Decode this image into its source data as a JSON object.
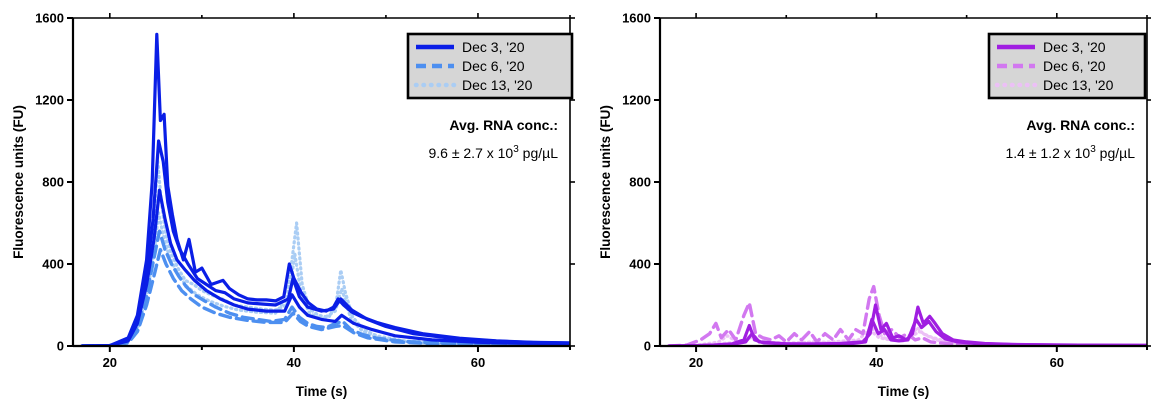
{
  "chart_data": [
    {
      "type": "line",
      "ylabel": "Fluorescence units (FU)",
      "xlabel": "Time (s)",
      "xlim": [
        16,
        70
      ],
      "ylim": [
        0,
        1600
      ],
      "x_ticks": [
        20,
        40,
        60
      ],
      "y_ticks": [
        0,
        400,
        800,
        1200,
        1600
      ],
      "grid": false,
      "legend": "top-right",
      "annotation": {
        "title": "Avg. RNA conc.:",
        "value_text": "9.6 ± 2.7 x 10",
        "exponent": "3",
        "unit_text": " pg/µL"
      },
      "series": [
        {
          "name": "Dec 3, '20",
          "color": "#0a1ee6",
          "style": "solid",
          "x": [
            17,
            20,
            22,
            23,
            24,
            24.6,
            25.1,
            25.5,
            25.9,
            26.3,
            26.8,
            27.3,
            28,
            28.6,
            29.3,
            30,
            31,
            32.3,
            33,
            34,
            35,
            36,
            37,
            38,
            38.9,
            39.5,
            40,
            40.8,
            41.6,
            42.5,
            43.5,
            44.3,
            44.8,
            45.4,
            46.3,
            47.5,
            49,
            51,
            54,
            58,
            62,
            66,
            70
          ],
          "y": [
            0,
            2,
            40,
            150,
            420,
            800,
            1520,
            1100,
            1130,
            780,
            640,
            520,
            420,
            520,
            360,
            380,
            300,
            320,
            280,
            250,
            230,
            225,
            225,
            220,
            240,
            400,
            330,
            260,
            210,
            180,
            170,
            190,
            230,
            200,
            165,
            140,
            115,
            90,
            60,
            38,
            25,
            18,
            15
          ]
        },
        {
          "name": "Dec 3, '20",
          "color": "#0a1ee6",
          "style": "solid",
          "x": [
            17,
            20,
            22,
            23,
            24,
            24.7,
            25.3,
            25.8,
            26.3,
            26.9,
            27.6,
            28.5,
            29.5,
            30.5,
            31.5,
            32.5,
            33.5,
            35,
            36.5,
            38,
            39.4,
            39.9,
            40.6,
            41.5,
            43,
            44.3,
            45.1,
            46.3,
            48,
            50,
            53,
            57,
            62,
            66,
            70
          ],
          "y": [
            0,
            2,
            30,
            120,
            350,
            620,
            1000,
            900,
            700,
            560,
            470,
            400,
            330,
            300,
            270,
            260,
            230,
            210,
            205,
            200,
            230,
            330,
            240,
            190,
            170,
            180,
            230,
            175,
            130,
            95,
            60,
            38,
            24,
            17,
            14
          ]
        },
        {
          "name": "Dec 3, '20",
          "color": "#0a1ee6",
          "style": "solid",
          "x": [
            17,
            20,
            22,
            23,
            24,
            24.8,
            25.4,
            26,
            26.6,
            27.3,
            28.2,
            29.2,
            30.5,
            32,
            33.5,
            35,
            37,
            39,
            39.8,
            40.6,
            41.5,
            43,
            44.5,
            45.2,
            46.5,
            48.5,
            51,
            55,
            60,
            65,
            70
          ],
          "y": [
            0,
            2,
            25,
            110,
            300,
            520,
            760,
            620,
            500,
            420,
            370,
            320,
            270,
            230,
            200,
            180,
            170,
            170,
            250,
            190,
            150,
            130,
            120,
            150,
            110,
            80,
            50,
            30,
            18,
            13,
            11
          ]
        },
        {
          "name": "Dec 6, '20",
          "color": "#4d8ff0",
          "style": "dashed",
          "x": [
            17,
            20,
            22,
            23,
            24,
            24.8,
            25.4,
            26,
            26.7,
            27.5,
            28.3,
            29.2,
            30.3,
            31.5,
            33,
            34.5,
            36,
            37.5,
            39,
            39.8,
            40.6,
            41.5,
            42.5,
            43.5,
            44.5,
            45.3,
            46.2,
            47.5,
            49,
            52,
            56,
            60,
            65,
            70
          ],
          "y": [
            0,
            2,
            20,
            90,
            250,
            430,
            560,
            470,
            400,
            340,
            290,
            250,
            220,
            190,
            160,
            140,
            130,
            120,
            130,
            190,
            140,
            110,
            95,
            90,
            110,
            120,
            80,
            55,
            38,
            22,
            14,
            10,
            8,
            7
          ]
        },
        {
          "name": "Dec 6, '20",
          "color": "#4d8ff0",
          "style": "dashed",
          "x": [
            17,
            20,
            22,
            23,
            24,
            24.9,
            25.5,
            26.1,
            26.9,
            27.8,
            28.8,
            30,
            31.5,
            33,
            35,
            37,
            39,
            39.9,
            40.7,
            41.6,
            43,
            44.5,
            45.3,
            46.5,
            48,
            51,
            55,
            60,
            65,
            70
          ],
          "y": [
            0,
            2,
            15,
            70,
            200,
            360,
            470,
            400,
            330,
            270,
            230,
            190,
            160,
            140,
            125,
            115,
            115,
            160,
            120,
            95,
            80,
            95,
            100,
            65,
            40,
            20,
            12,
            9,
            7,
            6
          ]
        },
        {
          "name": "Dec 13, '20",
          "color": "#aacdf4",
          "style": "dotted",
          "x": [
            17,
            20,
            22,
            23,
            24,
            24.7,
            25.2,
            25.6,
            26.1,
            26.7,
            27.4,
            28.2,
            29.1,
            30,
            31,
            32.2,
            33.5,
            35,
            36.5,
            38,
            39.2,
            39.8,
            40.3,
            40.9,
            41.7,
            42.7,
            43.8,
            44.6,
            45.1,
            45.6,
            46.4,
            47.6,
            49,
            52,
            56,
            60,
            65,
            70
          ],
          "y": [
            0,
            2,
            25,
            100,
            300,
            560,
            900,
            700,
            540,
            450,
            380,
            320,
            300,
            270,
            250,
            230,
            200,
            190,
            180,
            175,
            200,
            420,
            600,
            300,
            180,
            150,
            140,
            210,
            370,
            260,
            140,
            80,
            50,
            25,
            14,
            9,
            7,
            6
          ]
        },
        {
          "name": "Dec 13, '20",
          "color": "#aacdf4",
          "style": "dotted",
          "x": [
            17,
            20,
            22,
            23,
            24,
            24.8,
            25.3,
            25.9,
            26.6,
            27.4,
            28.4,
            29.5,
            30.8,
            32.3,
            34,
            36,
            38,
            39.5,
            40.1,
            40.8,
            41.7,
            43,
            44.5,
            45.2,
            46.2,
            47.5,
            49.5,
            53,
            58,
            64,
            70
          ],
          "y": [
            0,
            2,
            20,
            80,
            250,
            450,
            650,
            520,
            420,
            350,
            290,
            250,
            220,
            195,
            175,
            165,
            160,
            250,
            450,
            250,
            160,
            130,
            170,
            280,
            130,
            70,
            35,
            16,
            9,
            7,
            6
          ]
        }
      ]
    },
    {
      "type": "line",
      "ylabel": "Fluorescence units (FU)",
      "xlabel": "Time (s)",
      "xlim": [
        16,
        70
      ],
      "ylim": [
        0,
        1600
      ],
      "x_ticks": [
        20,
        40,
        60
      ],
      "y_ticks": [
        0,
        400,
        800,
        1200,
        1600
      ],
      "grid": false,
      "legend": "top-right",
      "annotation": {
        "title": "Avg. RNA conc.:",
        "value_text": "1.4 ± 1.2 x 10",
        "exponent": "3",
        "unit_text": " pg/µL"
      },
      "series": [
        {
          "name": "Dec 3, '20",
          "color": "#a01ee1",
          "style": "solid",
          "x": [
            17,
            20,
            22,
            24,
            25.3,
            25.9,
            26.5,
            27.5,
            30,
            33,
            36,
            38.5,
            39.3,
            39.9,
            40.5,
            41.1,
            41.8,
            42.5,
            43.3,
            44,
            44.6,
            45.2,
            45.9,
            46.5,
            47.3,
            48.5,
            50,
            52,
            55,
            60,
            65,
            70
          ],
          "y": [
            0,
            2,
            5,
            10,
            30,
            100,
            30,
            15,
            10,
            10,
            12,
            20,
            60,
            200,
            80,
            110,
            40,
            50,
            30,
            60,
            190,
            110,
            145,
            110,
            60,
            30,
            20,
            12,
            8,
            5,
            4,
            3
          ]
        },
        {
          "name": "Dec 3, '20",
          "color": "#a01ee1",
          "style": "solid",
          "x": [
            17,
            20,
            22,
            24,
            25.5,
            26.2,
            27,
            30,
            34,
            37,
            38.8,
            39.5,
            40.2,
            40.9,
            41.6,
            42.5,
            43.5,
            44.4,
            45,
            45.8,
            46.6,
            47.6,
            49,
            51,
            55,
            60,
            65,
            70
          ],
          "y": [
            0,
            2,
            4,
            8,
            20,
            60,
            20,
            10,
            8,
            10,
            20,
            130,
            60,
            80,
            30,
            25,
            30,
            130,
            90,
            120,
            70,
            35,
            20,
            12,
            7,
            5,
            4,
            3
          ]
        },
        {
          "name": "Dec 6, '20",
          "color": "#d278f0",
          "style": "dashed",
          "x": [
            17,
            19,
            20.5,
            21.5,
            22.2,
            22.8,
            23.6,
            24.4,
            25.3,
            25.9,
            26.6,
            27.4,
            28.3,
            29.2,
            30,
            30.9,
            31.7,
            32.6,
            33.4,
            34.3,
            35.2,
            36,
            36.9,
            37.7,
            38.5,
            39.2,
            39.7,
            40.3,
            40.9,
            41.7,
            42.6,
            43.4,
            44.3,
            45.1,
            46,
            47,
            48.5,
            50,
            52,
            55,
            60,
            65,
            70
          ],
          "y": [
            0,
            5,
            30,
            60,
            110,
            40,
            80,
            30,
            150,
            210,
            60,
            40,
            30,
            50,
            20,
            60,
            30,
            70,
            20,
            60,
            30,
            80,
            30,
            80,
            60,
            230,
            290,
            150,
            60,
            80,
            40,
            60,
            30,
            40,
            20,
            15,
            10,
            8,
            6,
            4,
            3,
            2,
            2
          ]
        },
        {
          "name": "Dec 13, '20",
          "color": "#ecc0f6",
          "style": "dotted",
          "x": [
            17,
            20,
            22,
            24,
            25.5,
            26.2,
            27,
            29,
            32,
            35,
            38,
            39.4,
            40,
            40.8,
            42,
            43.8,
            44.5,
            45.2,
            46,
            47.5,
            49,
            52,
            56,
            60,
            65,
            70
          ],
          "y": [
            0,
            3,
            10,
            15,
            30,
            60,
            25,
            15,
            15,
            20,
            30,
            90,
            70,
            40,
            30,
            40,
            90,
            60,
            45,
            25,
            15,
            8,
            5,
            3,
            2,
            2
          ]
        },
        {
          "name": "Dec 13, '20",
          "color": "#ecc0f6",
          "style": "dotted",
          "x": [
            17,
            20,
            22.5,
            23.5,
            24.5,
            26,
            27,
            30,
            33,
            36,
            38.5,
            39.5,
            40.3,
            41.5,
            43,
            44.8,
            45.6,
            47,
            49,
            53,
            58,
            64,
            70
          ],
          "y": [
            0,
            3,
            20,
            50,
            20,
            40,
            20,
            12,
            20,
            15,
            25,
            70,
            40,
            30,
            25,
            70,
            50,
            25,
            12,
            6,
            3,
            2,
            2
          ]
        }
      ]
    }
  ]
}
